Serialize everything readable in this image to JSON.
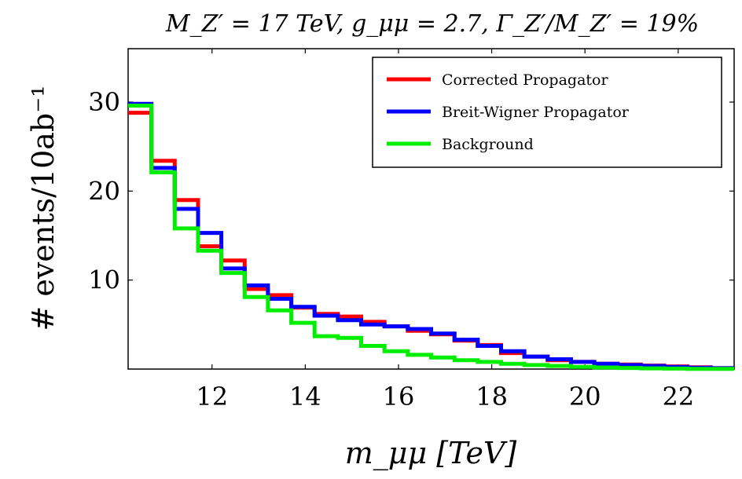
{
  "chart_data": {
    "type": "histogram-step",
    "title": "M_{Z'} = 17 TeV, g_{μμ} = 2.7, Γ_{Z'}/M_{Z'} = 19%",
    "title_display": "M_Z′ = 17 TeV, g_μμ = 2.7, Γ_Z′/M_Z′ = 19%",
    "xlabel": "m_μμ [TeV]",
    "ylabel": "# events/10ab⁻¹",
    "xlim": [
      10.2,
      23.2
    ],
    "ylim": [
      0,
      36
    ],
    "x_ticks": [
      12,
      14,
      16,
      18,
      20,
      22
    ],
    "y_ticks": [
      10,
      20,
      30
    ],
    "legend_position": "top-right",
    "bin_edges": [
      10.2,
      10.7,
      11.2,
      11.7,
      12.2,
      12.7,
      13.2,
      13.7,
      14.2,
      14.7,
      15.2,
      15.7,
      16.2,
      16.7,
      17.2,
      17.7,
      18.2,
      18.7,
      19.2,
      19.7,
      20.2,
      20.7,
      21.2,
      21.7,
      22.2,
      22.7,
      23.2
    ],
    "series": [
      {
        "name": "Corrected Propagator",
        "color": "#ff0000",
        "values": [
          28.8,
          23.4,
          19.0,
          13.8,
          12.2,
          9.0,
          8.3,
          6.9,
          6.2,
          5.9,
          5.3,
          4.8,
          4.3,
          3.9,
          3.2,
          2.7,
          1.8,
          1.4,
          1.0,
          0.8,
          0.6,
          0.5,
          0.4,
          0.3,
          0.2,
          0.1
        ]
      },
      {
        "name": "Breit-Wigner Propagator",
        "color": "#0000ff",
        "values": [
          29.8,
          22.6,
          18.0,
          15.3,
          11.3,
          9.4,
          7.9,
          7.0,
          6.0,
          5.5,
          5.0,
          4.8,
          4.5,
          4.0,
          3.3,
          2.6,
          2.0,
          1.4,
          1.1,
          0.8,
          0.6,
          0.45,
          0.35,
          0.25,
          0.15,
          0.1
        ]
      },
      {
        "name": "Background",
        "color": "#00ee00",
        "values": [
          29.6,
          22.1,
          15.8,
          13.3,
          10.8,
          8.1,
          6.6,
          5.2,
          3.7,
          3.5,
          2.6,
          2.0,
          1.6,
          1.3,
          1.0,
          0.8,
          0.6,
          0.45,
          0.35,
          0.25,
          0.18,
          0.12,
          0.08,
          0.05,
          0.03,
          0.02
        ]
      }
    ]
  }
}
